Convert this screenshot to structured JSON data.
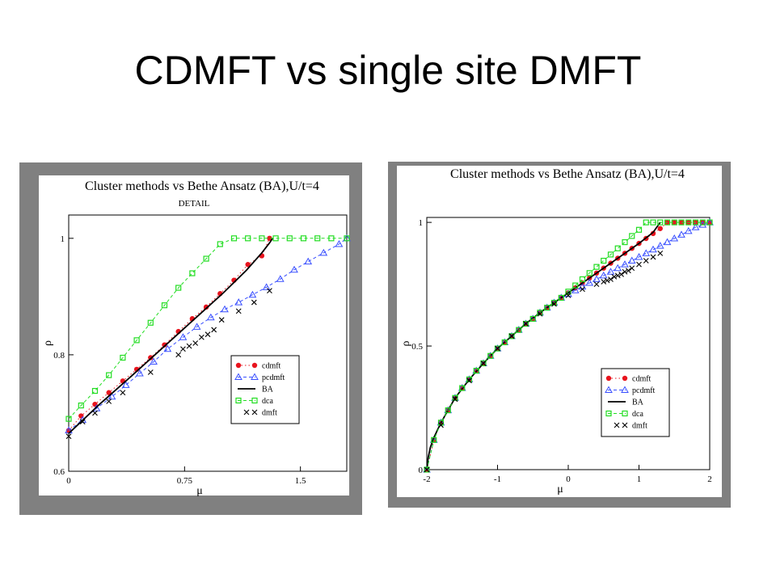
{
  "slide": {
    "title": "CDMFT vs single site DMFT"
  },
  "colors": {
    "cdmft": "#e8141e",
    "pcdmft": "#3a50ff",
    "BA": "#000000",
    "dca": "#22dd22",
    "dmft": "#000000",
    "panel_bg": "#808080"
  },
  "chart_data": [
    {
      "type": "line",
      "title": "Cluster methods vs Bethe Ansatz (BA),U/t=4",
      "subtitle": "DETAIL",
      "xlabel": "μ",
      "ylabel": "ρ",
      "xlim": [
        0,
        1.8
      ],
      "ylim": [
        0.6,
        1.04
      ],
      "xticks": [
        0,
        0.75,
        1.5
      ],
      "xtick_labels": [
        "0",
        "0.75",
        "1.5"
      ],
      "yticks": [
        0.6,
        0.8,
        1.0
      ],
      "ytick_labels": [
        "0.6",
        "0.8",
        "1"
      ],
      "legend": [
        "cdmft",
        "pcdmft",
        "BA",
        "dca",
        "dmft"
      ],
      "legend_position": "bottom-right",
      "series": [
        {
          "name": "cdmft",
          "style": "dotted",
          "marker": "filled-circle",
          "x": [
            0,
            0.08,
            0.17,
            0.26,
            0.35,
            0.44,
            0.53,
            0.62,
            0.71,
            0.8,
            0.89,
            0.98,
            1.07,
            1.16,
            1.25,
            1.3
          ],
          "y": [
            0.67,
            0.695,
            0.715,
            0.735,
            0.755,
            0.775,
            0.795,
            0.817,
            0.84,
            0.862,
            0.882,
            0.905,
            0.928,
            0.955,
            0.97,
            1.0
          ]
        },
        {
          "name": "pcdmft",
          "style": "dashed",
          "marker": "open-triangle",
          "x": [
            0,
            0.09,
            0.18,
            0.28,
            0.37,
            0.46,
            0.55,
            0.64,
            0.74,
            0.83,
            0.92,
            1.01,
            1.1,
            1.19,
            1.28,
            1.37,
            1.46,
            1.55,
            1.65,
            1.75,
            1.8
          ],
          "y": [
            0.67,
            0.688,
            0.708,
            0.728,
            0.748,
            0.768,
            0.788,
            0.81,
            0.83,
            0.848,
            0.864,
            0.878,
            0.89,
            0.903,
            0.916,
            0.93,
            0.946,
            0.96,
            0.975,
            0.99,
            1.0
          ]
        },
        {
          "name": "BA",
          "style": "solid",
          "marker": "none",
          "x": [
            0,
            0.2,
            0.4,
            0.6,
            0.8,
            1.0,
            1.15,
            1.25,
            1.3,
            1.32
          ],
          "y": [
            0.665,
            0.715,
            0.762,
            0.81,
            0.858,
            0.906,
            0.945,
            0.975,
            0.992,
            1.0
          ]
        },
        {
          "name": "dca",
          "style": "dashed",
          "marker": "open-square",
          "x": [
            0,
            0.08,
            0.17,
            0.26,
            0.35,
            0.44,
            0.53,
            0.62,
            0.71,
            0.8,
            0.89,
            0.98,
            1.07,
            1.16,
            1.25,
            1.34,
            1.43,
            1.52,
            1.61,
            1.7,
            1.8
          ],
          "y": [
            0.69,
            0.713,
            0.738,
            0.765,
            0.795,
            0.825,
            0.855,
            0.885,
            0.915,
            0.94,
            0.965,
            0.99,
            1.0,
            1.0,
            1.0,
            1.0,
            1.0,
            1.0,
            1.0,
            1.0,
            1.0
          ]
        },
        {
          "name": "dmft",
          "style": "none",
          "marker": "cross",
          "x": [
            0,
            0.09,
            0.17,
            0.26,
            0.35,
            0.53,
            0.71,
            0.74,
            0.78,
            0.82,
            0.86,
            0.9,
            0.94,
            0.99,
            1.1,
            1.2,
            1.3
          ],
          "y": [
            0.66,
            0.685,
            0.7,
            0.72,
            0.735,
            0.77,
            0.8,
            0.81,
            0.815,
            0.82,
            0.83,
            0.835,
            0.843,
            0.86,
            0.875,
            0.89,
            0.91
          ]
        }
      ]
    },
    {
      "type": "line",
      "title": "Cluster methods vs Bethe Ansatz (BA),U/t=4",
      "xlabel": "μ",
      "ylabel": "ρ",
      "xlim": [
        -2,
        2
      ],
      "ylim": [
        0,
        1.02
      ],
      "xticks": [
        -2,
        -1,
        0,
        1,
        2
      ],
      "xtick_labels": [
        "-2",
        "-1",
        "0",
        "1",
        "2"
      ],
      "yticks": [
        0,
        0.5,
        1.0
      ],
      "ytick_labels": [
        "0",
        "0.5",
        "1"
      ],
      "legend": [
        "cdmft",
        "pcdmft",
        "BA",
        "dca",
        "dmft"
      ],
      "legend_position": "bottom-right",
      "series": [
        {
          "name": "cdmft",
          "style": "dotted",
          "marker": "filled-circle",
          "x": [
            -2,
            -1.9,
            -1.8,
            -1.7,
            -1.6,
            -1.5,
            -1.4,
            -1.3,
            -1.2,
            -1.1,
            -1.0,
            -0.9,
            -0.8,
            -0.7,
            -0.6,
            -0.5,
            -0.4,
            -0.3,
            -0.2,
            -0.1,
            0.0,
            0.1,
            0.2,
            0.3,
            0.4,
            0.5,
            0.6,
            0.7,
            0.8,
            0.9,
            1.0,
            1.1,
            1.2,
            1.3,
            1.4,
            1.5,
            1.6,
            1.7,
            1.8,
            1.9,
            2.0
          ],
          "y": [
            0.0,
            0.12,
            0.19,
            0.24,
            0.29,
            0.33,
            0.365,
            0.4,
            0.43,
            0.46,
            0.49,
            0.515,
            0.54,
            0.565,
            0.59,
            0.61,
            0.635,
            0.655,
            0.675,
            0.695,
            0.715,
            0.735,
            0.755,
            0.775,
            0.795,
            0.815,
            0.835,
            0.855,
            0.875,
            0.895,
            0.915,
            0.935,
            0.955,
            0.975,
            1.0,
            1.0,
            1.0,
            1.0,
            1.0,
            1.0,
            1.0
          ]
        },
        {
          "name": "pcdmft",
          "style": "dashed",
          "marker": "open-triangle",
          "x": [
            -2,
            -1.9,
            -1.8,
            -1.7,
            -1.6,
            -1.5,
            -1.4,
            -1.3,
            -1.2,
            -1.1,
            -1.0,
            -0.9,
            -0.8,
            -0.7,
            -0.6,
            -0.5,
            -0.4,
            -0.3,
            -0.2,
            -0.1,
            0.0,
            0.1,
            0.2,
            0.3,
            0.4,
            0.5,
            0.6,
            0.7,
            0.8,
            0.9,
            1.0,
            1.1,
            1.2,
            1.3,
            1.4,
            1.5,
            1.6,
            1.7,
            1.8,
            1.9,
            2.0
          ],
          "y": [
            0.0,
            0.12,
            0.19,
            0.24,
            0.29,
            0.33,
            0.365,
            0.4,
            0.43,
            0.46,
            0.49,
            0.515,
            0.54,
            0.565,
            0.59,
            0.61,
            0.635,
            0.655,
            0.675,
            0.695,
            0.71,
            0.725,
            0.74,
            0.755,
            0.77,
            0.785,
            0.8,
            0.815,
            0.83,
            0.845,
            0.86,
            0.875,
            0.89,
            0.905,
            0.92,
            0.935,
            0.95,
            0.965,
            0.98,
            0.99,
            1.0
          ]
        },
        {
          "name": "BA",
          "style": "solid",
          "marker": "none",
          "x": [
            -2,
            -1.98,
            -1.95,
            -1.9,
            -1.8,
            -1.6,
            -1.4,
            -1.2,
            -1.0,
            -0.8,
            -0.6,
            -0.4,
            -0.2,
            0.0,
            0.2,
            0.4,
            0.6,
            0.8,
            1.0,
            1.2,
            1.3
          ],
          "y": [
            0.0,
            0.05,
            0.09,
            0.13,
            0.19,
            0.29,
            0.365,
            0.43,
            0.49,
            0.54,
            0.59,
            0.635,
            0.675,
            0.715,
            0.755,
            0.795,
            0.835,
            0.875,
            0.915,
            0.96,
            1.0
          ]
        },
        {
          "name": "dca",
          "style": "dashed",
          "marker": "open-square",
          "x": [
            -2,
            -1.9,
            -1.8,
            -1.7,
            -1.6,
            -1.5,
            -1.4,
            -1.3,
            -1.2,
            -1.1,
            -1.0,
            -0.9,
            -0.8,
            -0.7,
            -0.6,
            -0.5,
            -0.4,
            -0.3,
            -0.2,
            -0.1,
            0.0,
            0.1,
            0.2,
            0.3,
            0.4,
            0.5,
            0.6,
            0.7,
            0.8,
            0.9,
            1.0,
            1.1,
            1.2,
            1.3,
            1.4,
            1.5,
            1.6,
            1.7,
            1.8,
            1.9,
            2.0
          ],
          "y": [
            0.0,
            0.12,
            0.19,
            0.24,
            0.29,
            0.33,
            0.365,
            0.4,
            0.43,
            0.46,
            0.49,
            0.515,
            0.54,
            0.565,
            0.59,
            0.61,
            0.635,
            0.655,
            0.675,
            0.695,
            0.72,
            0.745,
            0.77,
            0.795,
            0.82,
            0.845,
            0.87,
            0.895,
            0.92,
            0.945,
            0.97,
            1.0,
            1.0,
            1.0,
            1.0,
            1.0,
            1.0,
            1.0,
            1.0,
            1.0,
            1.0
          ]
        },
        {
          "name": "dmft",
          "style": "none",
          "marker": "cross",
          "x": [
            -2,
            -1.8,
            -1.6,
            -1.4,
            -1.2,
            -1.0,
            -0.8,
            -0.6,
            -0.4,
            -0.2,
            0.0,
            0.2,
            0.4,
            0.5,
            0.55,
            0.6,
            0.65,
            0.7,
            0.75,
            0.8,
            0.85,
            0.9,
            1.0,
            1.1,
            1.2,
            1.3
          ],
          "y": [
            0.0,
            0.18,
            0.285,
            0.36,
            0.43,
            0.49,
            0.54,
            0.59,
            0.63,
            0.67,
            0.705,
            0.73,
            0.75,
            0.76,
            0.765,
            0.77,
            0.78,
            0.785,
            0.79,
            0.8,
            0.805,
            0.815,
            0.83,
            0.845,
            0.86,
            0.875
          ]
        }
      ]
    }
  ]
}
